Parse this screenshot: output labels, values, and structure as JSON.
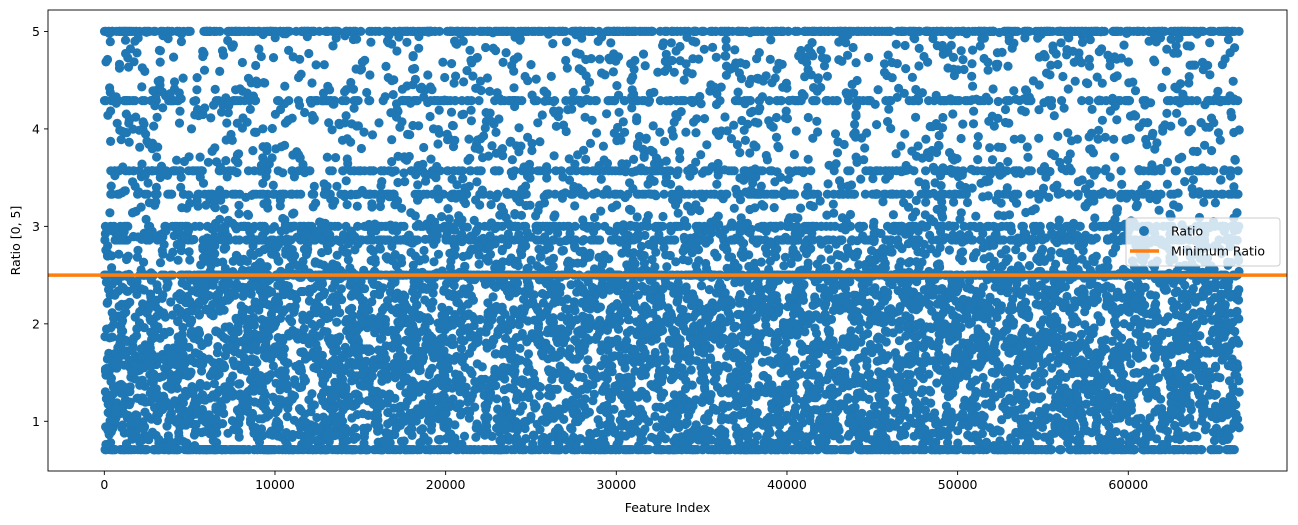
{
  "chart_data": {
    "type": "scatter",
    "xlabel": "Feature Index",
    "ylabel": "Ratio [0, 5]",
    "xlim": [
      -3300,
      69300
    ],
    "ylim": [
      0.49,
      5.22
    ],
    "x_ticks": [
      0,
      10000,
      20000,
      30000,
      40000,
      50000,
      60000
    ],
    "y_ticks": [
      1,
      2,
      3,
      4,
      5
    ],
    "grid": false,
    "legend_placement": "center-right",
    "n_points": 66500,
    "series": [
      {
        "name": "Ratio",
        "kind": "scatter",
        "color": "#1f77b4",
        "x_range": [
          0,
          66500
        ],
        "value_range": [
          0.71,
          5.0
        ],
        "dense_band": [
          0.71,
          2.5
        ],
        "common_levels": [
          5.0,
          4.29,
          3.57,
          3.33,
          3.0,
          2.86,
          2.5,
          0.71
        ]
      },
      {
        "name": "Minimum Ratio",
        "kind": "hline",
        "color": "#ff7f0e",
        "y": 2.5
      }
    ]
  }
}
